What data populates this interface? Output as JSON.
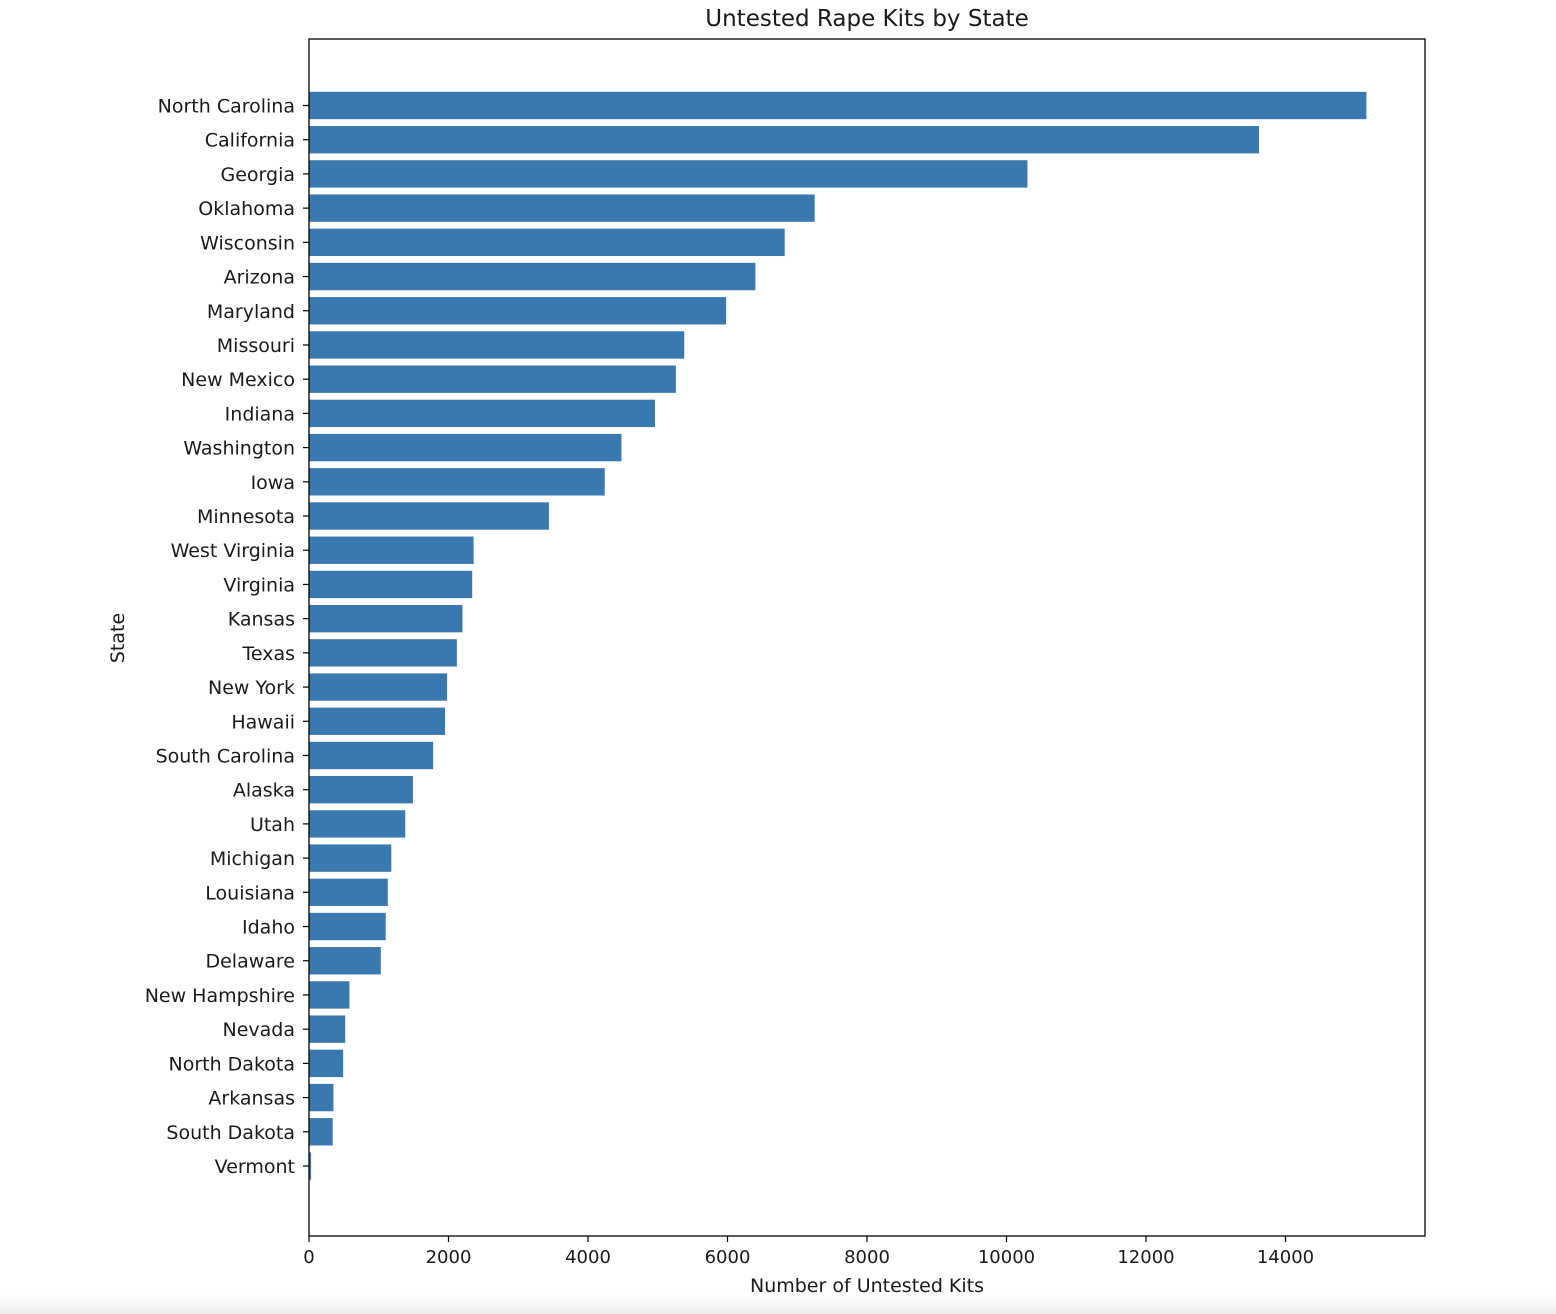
{
  "chart_data": {
    "type": "bar",
    "orientation": "horizontal",
    "title": "Untested Rape Kits by State",
    "xlabel": "Number of Untested Kits",
    "ylabel": "State",
    "xlim": [
      0,
      16000
    ],
    "xticks": [
      0,
      2000,
      4000,
      6000,
      8000,
      10000,
      12000,
      14000
    ],
    "bar_color": "#3a78b0",
    "grid": false,
    "categories": [
      "North Carolina",
      "California",
      "Georgia",
      "Oklahoma",
      "Wisconsin",
      "Arizona",
      "Maryland",
      "Missouri",
      "New Mexico",
      "Indiana",
      "Washington",
      "Iowa",
      "Minnesota",
      "West Virginia",
      "Virginia",
      "Kansas",
      "Texas",
      "New York",
      "Hawaii",
      "South Carolina",
      "Alaska",
      "Utah",
      "Michigan",
      "Louisiana",
      "Idaho",
      "Delaware",
      "New Hampshire",
      "Nevada",
      "North Dakota",
      "Arkansas",
      "South Dakota",
      "Vermont"
    ],
    "values": [
      15160,
      13620,
      10300,
      7250,
      6820,
      6400,
      5980,
      5380,
      5260,
      4960,
      4480,
      4240,
      3440,
      2360,
      2340,
      2200,
      2120,
      1980,
      1950,
      1780,
      1490,
      1380,
      1180,
      1130,
      1100,
      1030,
      580,
      520,
      490,
      350,
      340,
      30
    ]
  }
}
